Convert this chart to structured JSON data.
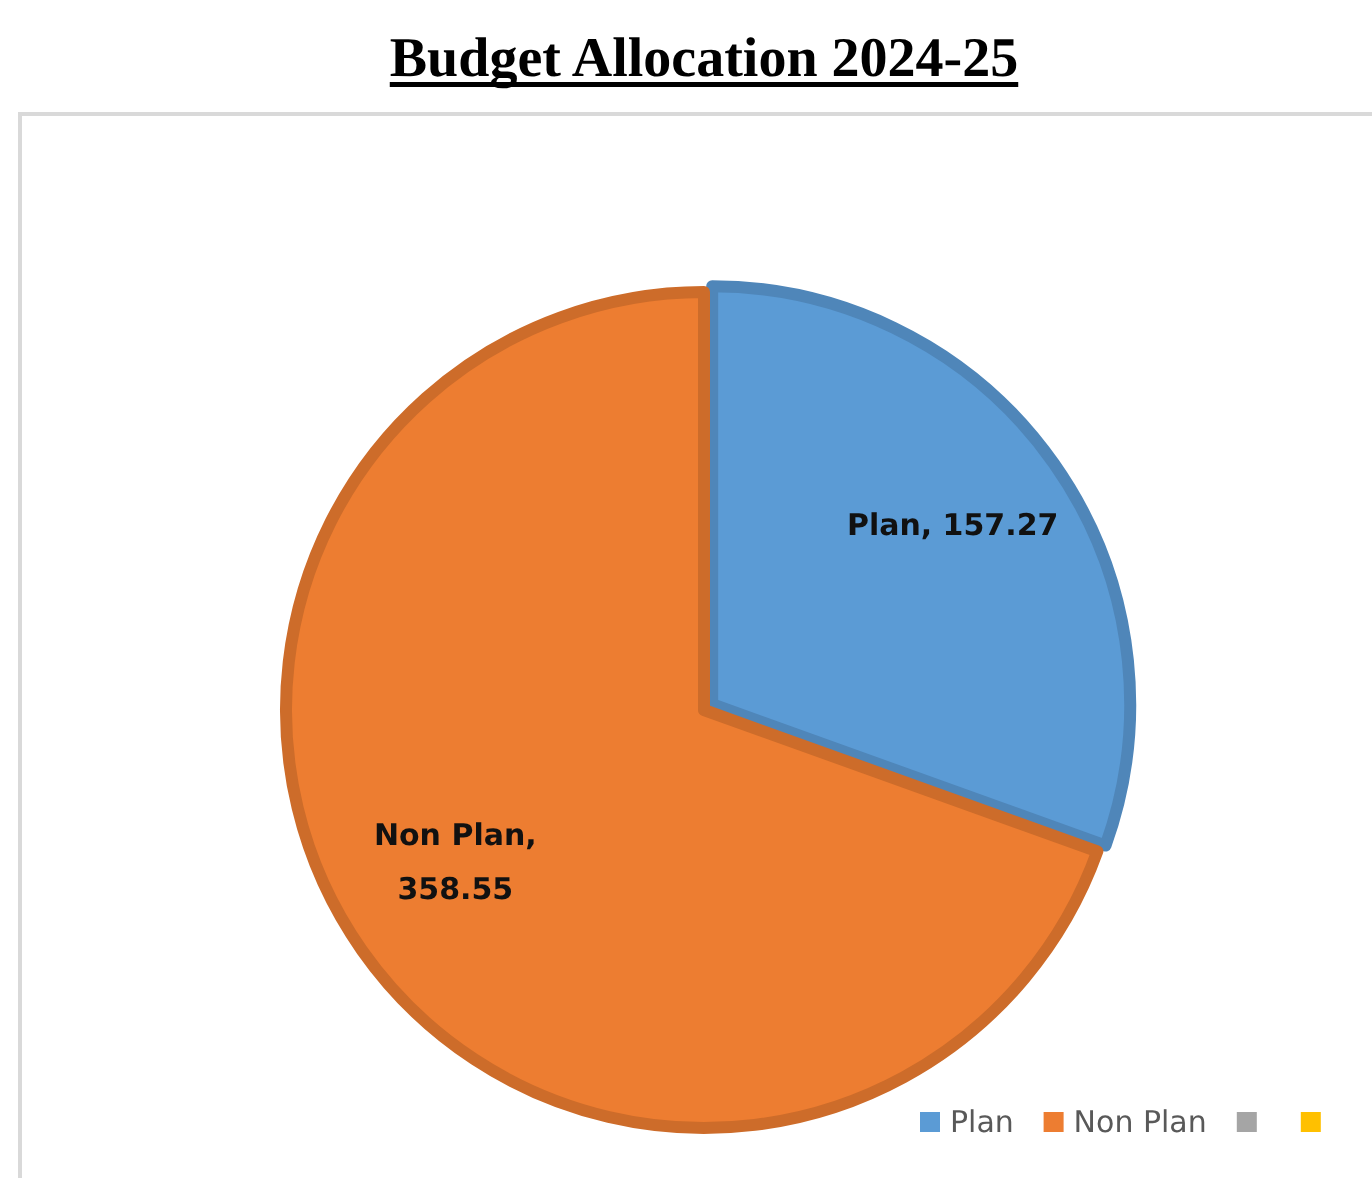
{
  "chart_data": {
    "type": "pie",
    "title": "Budget Allocation 2024-25",
    "categories": [
      "Plan",
      "Non Plan",
      null,
      null
    ],
    "values": [
      157.27,
      358.55,
      null,
      null
    ],
    "value_labels": [
      "Plan, 157.27",
      "Non Plan, 358.55",
      null,
      null
    ],
    "colors": [
      "#5b9bd5",
      "#ed7d31",
      "#a5a5a5",
      "#ffc000"
    ],
    "legend": "bottom right"
  }
}
